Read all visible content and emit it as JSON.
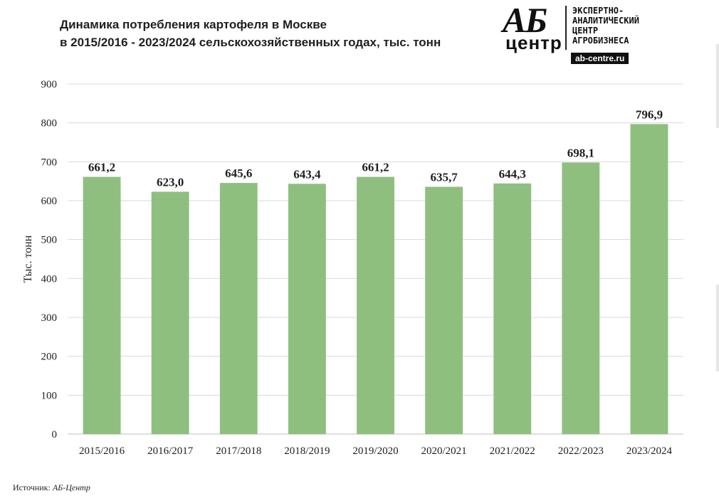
{
  "title_lines": [
    "Динамика потребления картофеля в Москве",
    "в 2015/2016 - 2023/2024 сельскохозяйственных годах, тыс. тонн"
  ],
  "logo": {
    "mark_top": "АБ",
    "mark_bottom": "центр",
    "lines": [
      "ЭКСПЕРТНО-",
      "АНАЛИТИЧЕСКИЙ",
      "ЦЕНТР",
      "АГРОБИЗНЕСА"
    ],
    "url": "ab-centre.ru"
  },
  "source": {
    "label": "Источник:",
    "value": "АБ-Центр"
  },
  "colors": {
    "bar": "#8fbf7f",
    "grid": "#d9d9d9",
    "text": "#1f1f1f"
  },
  "chart_data": {
    "type": "bar",
    "title": "Динамика потребления картофеля в Москве в 2015/2016 - 2023/2024 сельскохозяйственных годах, тыс. тонн",
    "categories": [
      "2015/2016",
      "2016/2017",
      "2017/2018",
      "2018/2019",
      "2019/2020",
      "2020/2021",
      "2021/2022",
      "2022/2023",
      "2023/2024"
    ],
    "values": [
      661.2,
      623.0,
      645.6,
      643.4,
      661.2,
      635.7,
      644.3,
      698.1,
      796.9
    ],
    "value_labels": [
      "661,2",
      "623,0",
      "645,6",
      "643,4",
      "661,2",
      "635,7",
      "644,3",
      "698,1",
      "796,9"
    ],
    "xlabel": "",
    "ylabel": "Тыс. тонн",
    "ylim": [
      0,
      900
    ],
    "yticks": [
      0,
      100,
      200,
      300,
      400,
      500,
      600,
      700,
      800,
      900
    ],
    "grid": true,
    "legend": "none"
  }
}
